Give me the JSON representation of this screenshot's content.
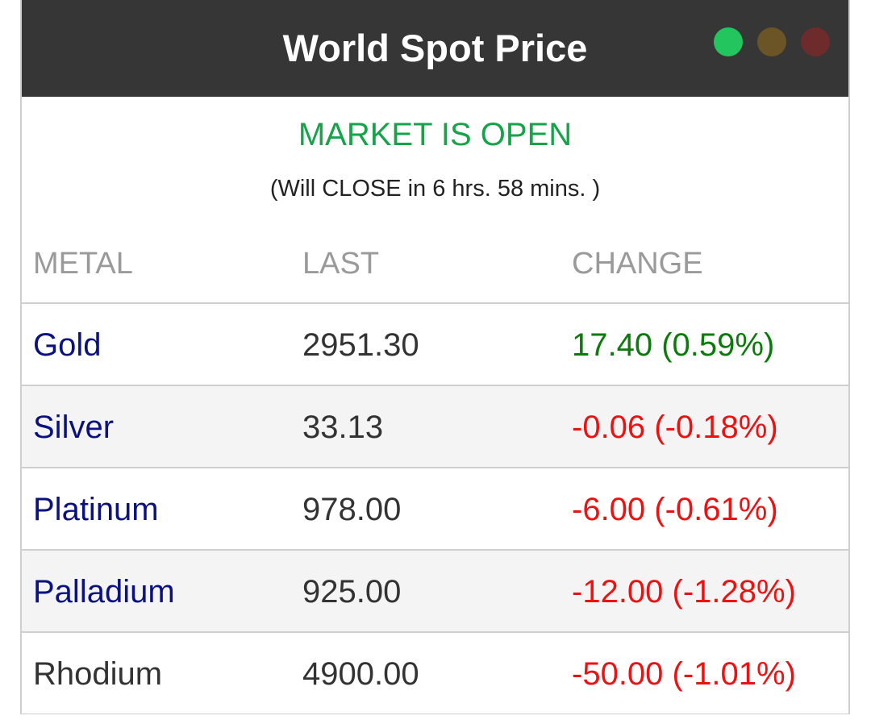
{
  "header": {
    "title": "World Spot Price",
    "window_dots": [
      "green-dot",
      "amber-dot",
      "red-dot"
    ]
  },
  "market": {
    "status": "MARKET IS OPEN",
    "close_note": "(Will CLOSE in 6 hrs. 58 mins. )"
  },
  "table": {
    "columns": [
      "METAL",
      "LAST",
      "CHANGE"
    ],
    "rows": [
      {
        "metal": "Gold",
        "last": "2951.30",
        "change": "17.40 (0.59%)",
        "direction": "up"
      },
      {
        "metal": "Silver",
        "last": "33.13",
        "change": "-0.06 (-0.18%)",
        "direction": "down"
      },
      {
        "metal": "Platinum",
        "last": "978.00",
        "change": "-6.00 (-0.61%)",
        "direction": "down"
      },
      {
        "metal": "Palladium",
        "last": "925.00",
        "change": "-12.00 (-1.28%)",
        "direction": "down"
      },
      {
        "metal": "Rhodium",
        "last": "4900.00",
        "change": "-50.00 (-1.01%)",
        "direction": "down"
      }
    ]
  },
  "colors": {
    "header_bg": "#363636",
    "open_green": "#17a34a",
    "metal_link": "#0b1280",
    "positive": "#0e7a0e",
    "negative": "#ee1111"
  }
}
